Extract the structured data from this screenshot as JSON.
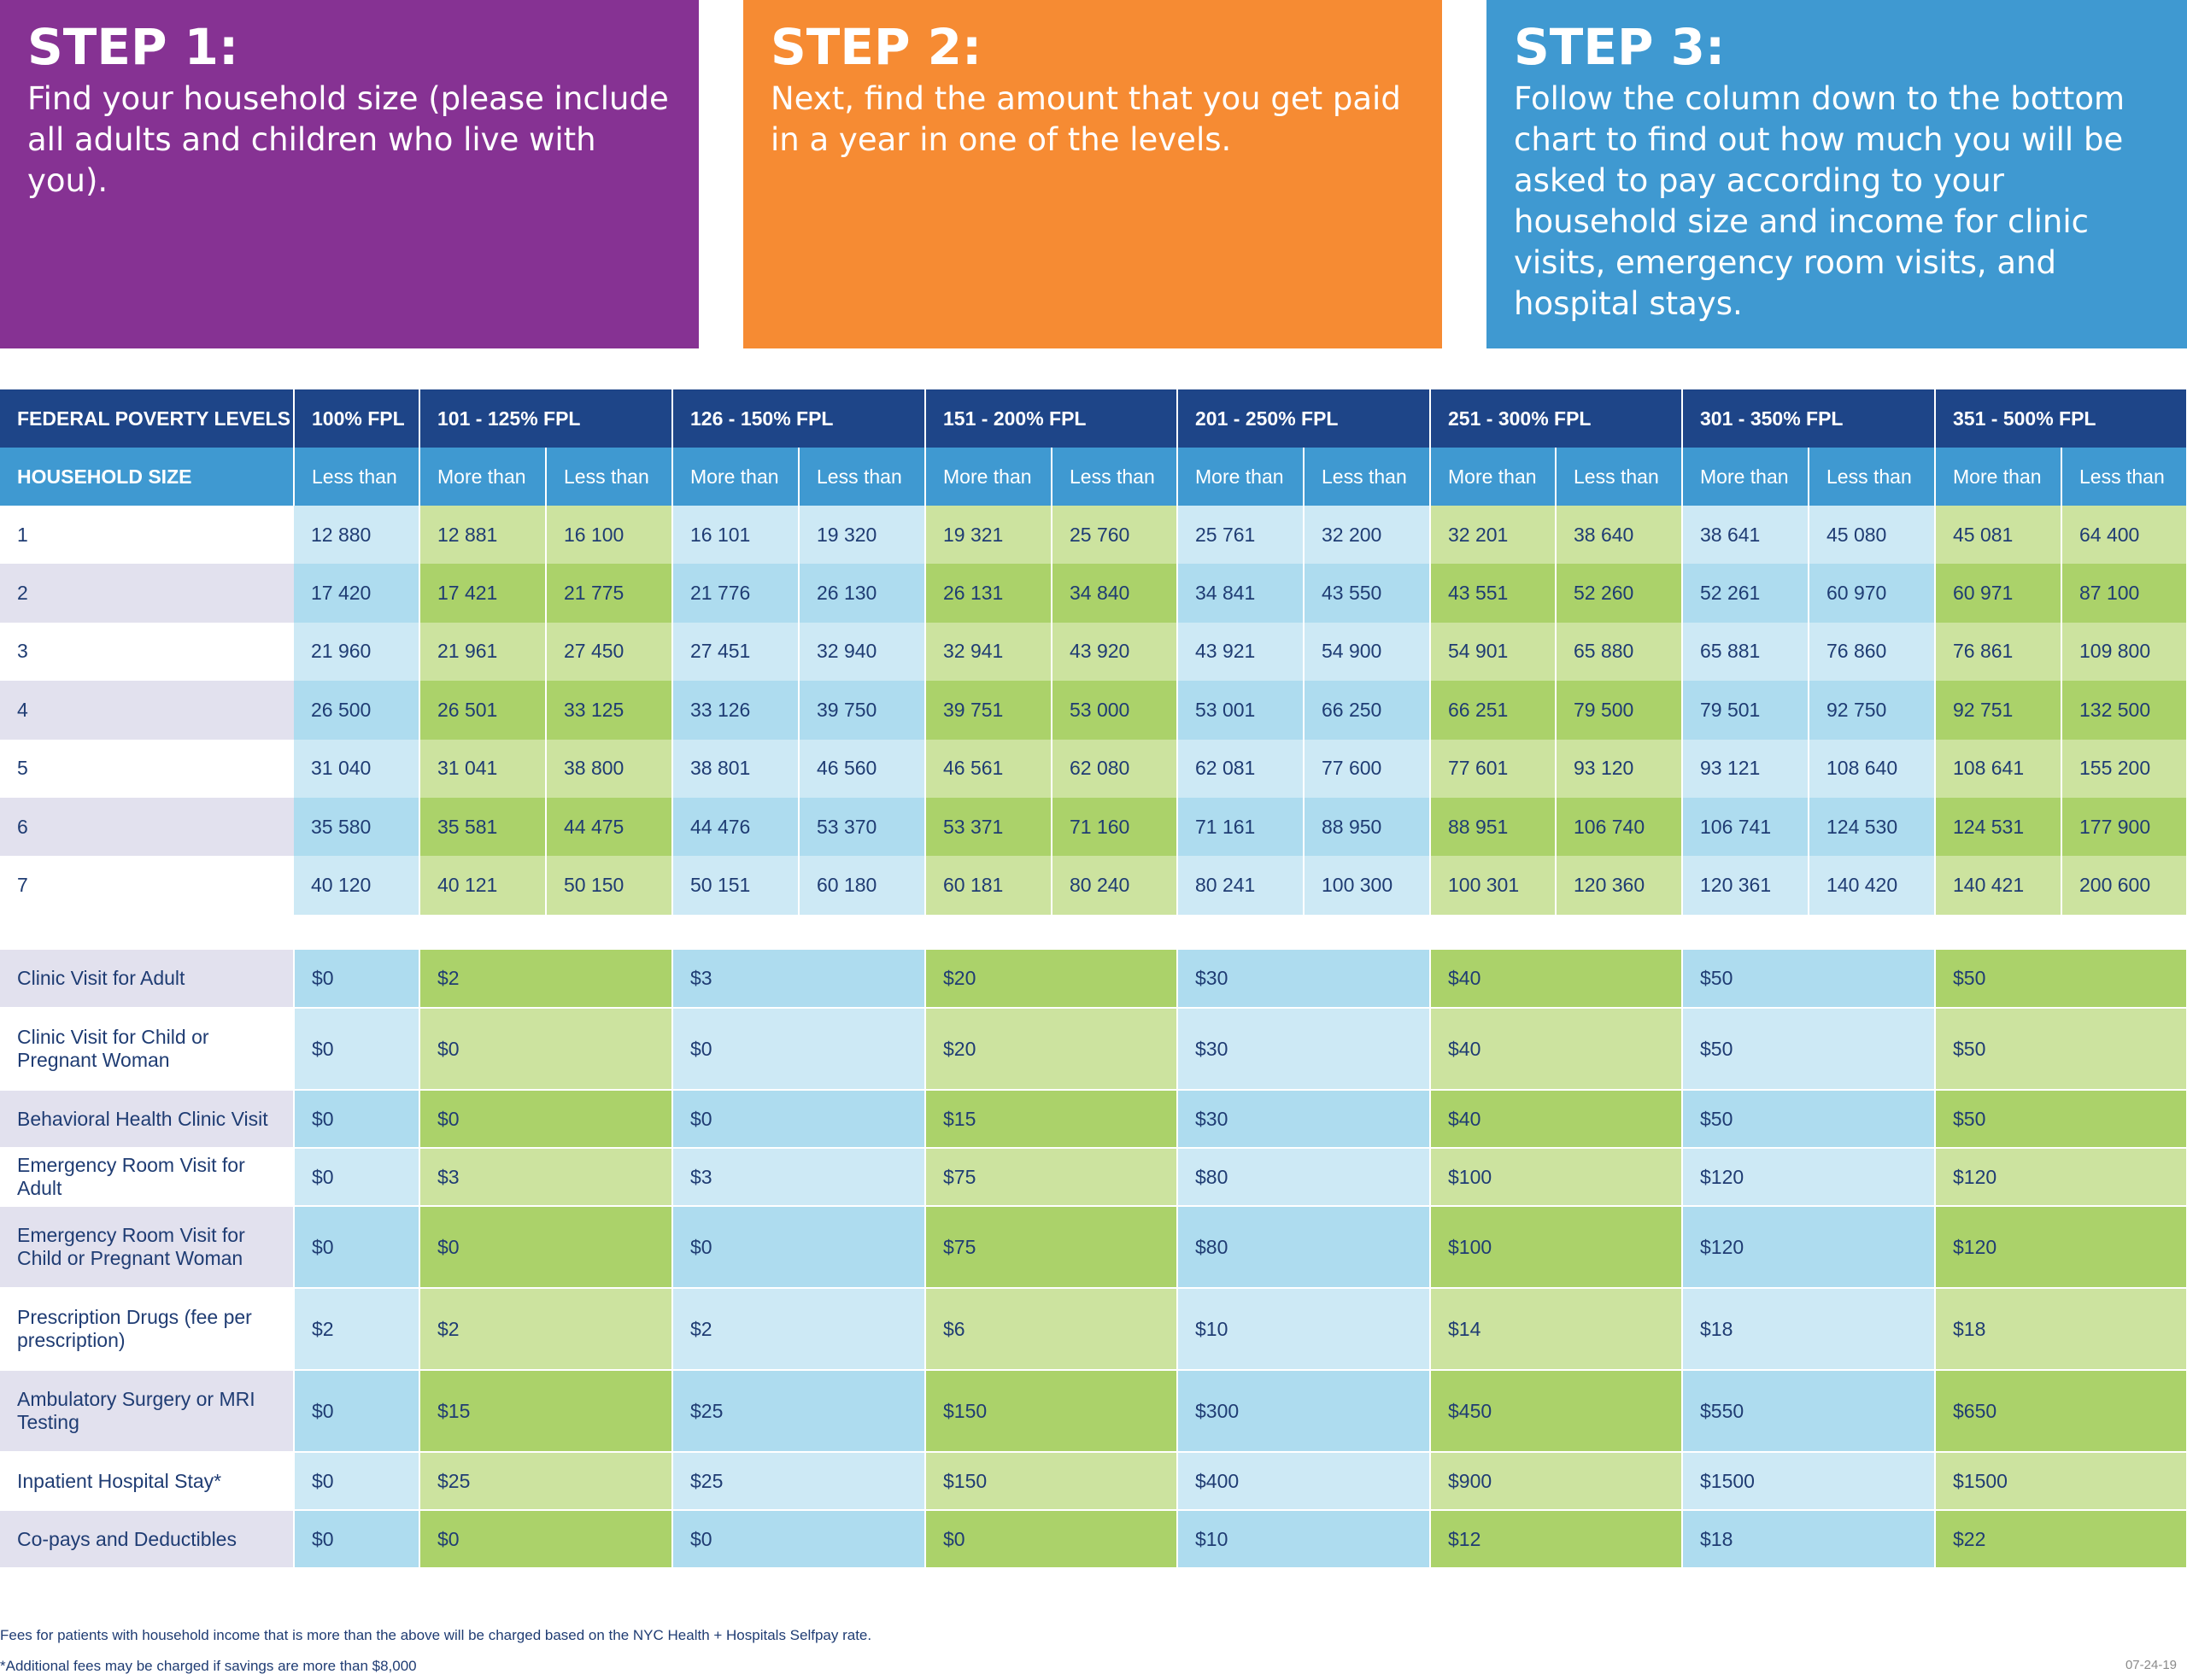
{
  "steps": [
    {
      "title": "STEP 1:",
      "text": "Find your household size (please include all adults and children who live with you)."
    },
    {
      "title": "STEP 2:",
      "text": "Next, find the amount that you get paid in a year in one of the levels."
    },
    {
      "title": "STEP 3:",
      "text": "Follow the column down to the bottom chart to find out how much you will be asked to pay according to your household size and income for clinic visits, emergency room visits, and hospital stays."
    }
  ],
  "income_table": {
    "corner_label": "FEDERAL POVERTY LEVELS",
    "size_label": "HOUSEHOLD SIZE",
    "levels": [
      "100% FPL",
      "101 - 125% FPL",
      "126 - 150% FPL",
      "151 - 200% FPL",
      "201 - 250% FPL",
      "251 - 300% FPL",
      "301 - 350% FPL",
      "351 - 500% FPL"
    ],
    "more_than": "More than",
    "less_than": "Less than",
    "rows": [
      {
        "size": "1",
        "values": [
          "12 880",
          "12 881",
          "16 100",
          "16 101",
          "19 320",
          "19 321",
          "25 760",
          "25 761",
          "32 200",
          "32 201",
          "38 640",
          "38 641",
          "45 080",
          "45 081",
          "64 400"
        ]
      },
      {
        "size": "2",
        "values": [
          "17 420",
          "17 421",
          "21 775",
          "21 776",
          "26 130",
          "26 131",
          "34 840",
          "34 841",
          "43 550",
          "43 551",
          "52 260",
          "52 261",
          "60 970",
          "60 971",
          "87 100"
        ]
      },
      {
        "size": "3",
        "values": [
          "21 960",
          "21 961",
          "27 450",
          "27 451",
          "32 940",
          "32 941",
          "43 920",
          "43 921",
          "54 900",
          "54 901",
          "65 880",
          "65 881",
          "76 860",
          "76 861",
          "109 800"
        ]
      },
      {
        "size": "4",
        "values": [
          "26 500",
          "26 501",
          "33 125",
          "33 126",
          "39 750",
          "39 751",
          "53 000",
          "53 001",
          "66 250",
          "66 251",
          "79 500",
          "79 501",
          "92 750",
          "92 751",
          "132 500"
        ]
      },
      {
        "size": "5",
        "values": [
          "31 040",
          "31 041",
          "38 800",
          "38 801",
          "46 560",
          "46 561",
          "62 080",
          "62 081",
          "77 600",
          "77 601",
          "93 120",
          "93 121",
          "108 640",
          "108 641",
          "155 200"
        ]
      },
      {
        "size": "6",
        "values": [
          "35 580",
          "35 581",
          "44 475",
          "44 476",
          "53 370",
          "53 371",
          "71 160",
          "71 161",
          "88 950",
          "88 951",
          "106 740",
          "106 741",
          "124 530",
          "124 531",
          "177 900"
        ]
      },
      {
        "size": "7",
        "values": [
          "40 120",
          "40 121",
          "50 150",
          "50 151",
          "60 180",
          "60 181",
          "80 240",
          "80 241",
          "100 300",
          "100 301",
          "120 360",
          "120 361",
          "140 420",
          "140 421",
          "200 600"
        ]
      }
    ]
  },
  "fee_table": {
    "rows": [
      {
        "label": "Clinic Visit for Adult",
        "values": [
          "$0",
          "$2",
          "$3",
          "$20",
          "$30",
          "$40",
          "$50",
          "$50"
        ]
      },
      {
        "label": "Clinic Visit for Child or Pregnant Woman",
        "values": [
          "$0",
          "$0",
          "$0",
          "$20",
          "$30",
          "$40",
          "$50",
          "$50"
        ]
      },
      {
        "label": "Behavioral Health Clinic Visit",
        "values": [
          "$0",
          "$0",
          "$0",
          "$15",
          "$30",
          "$40",
          "$50",
          "$50"
        ]
      },
      {
        "label": "Emergency Room Visit for Adult",
        "values": [
          "$0",
          "$3",
          "$3",
          "$75",
          "$80",
          "$100",
          "$120",
          "$120"
        ]
      },
      {
        "label": "Emergency Room Visit for Child or Pregnant Woman",
        "values": [
          "$0",
          "$0",
          "$0",
          "$75",
          "$80",
          "$100",
          "$120",
          "$120"
        ]
      },
      {
        "label": "Prescription Drugs (fee per prescription)",
        "values": [
          "$2",
          "$2",
          "$2",
          "$6",
          "$10",
          "$14",
          "$18",
          "$18"
        ]
      },
      {
        "label": "Ambulatory Surgery or MRI Testing",
        "values": [
          "$0",
          "$15",
          "$25",
          "$150",
          "$300",
          "$450",
          "$550",
          "$650"
        ]
      },
      {
        "label": "Inpatient Hospital Stay*",
        "values": [
          "$0",
          "$25",
          "$25",
          "$150",
          "$400",
          "$900",
          "$1500",
          "$1500"
        ]
      },
      {
        "label": "Co-pays and Deductibles",
        "values": [
          "$0",
          "$0",
          "$0",
          "$0",
          "$10",
          "$12",
          "$18",
          "$22"
        ]
      }
    ]
  },
  "footer": {
    "note1": "Fees for patients with household income that is more than the above will be charged based on the NYC Health + Hospitals Selfpay rate.",
    "note2": "*Additional fees may be charged if savings are more than $8,000",
    "date": "07-24-19"
  },
  "colors": {
    "step1": "#863293",
    "step2": "#f68b33",
    "step3": "#3f99d1",
    "header_dark": "#1e4588",
    "header_light": "#3f99d1",
    "blue_light": "#cde9f5",
    "blue_dark": "#aedcef",
    "green_light": "#cce39f",
    "green_dark": "#abd26a"
  }
}
